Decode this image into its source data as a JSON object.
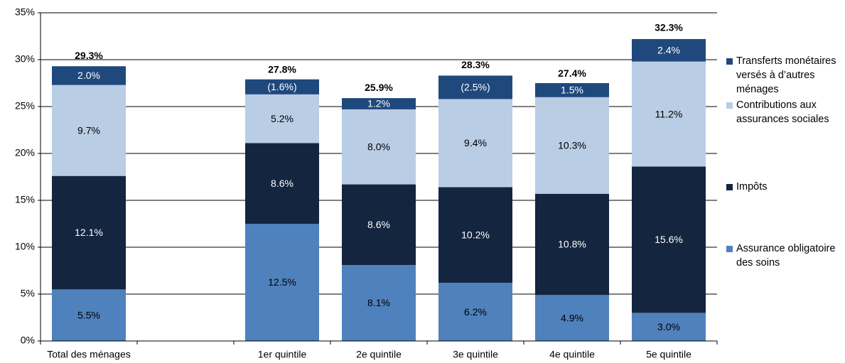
{
  "chart_data": {
    "type": "stacked_bar",
    "categories": [
      "Total des ménages",
      null,
      "1er quintile",
      "2e quintile",
      "3e quintile",
      "4e quintile",
      "5e quintile"
    ],
    "series": [
      {
        "name": "Assurance obligatoire des soins",
        "color": "#4f81bd",
        "values": [
          5.5,
          null,
          12.5,
          8.1,
          6.2,
          4.9,
          3.0
        ],
        "value_labels": [
          "5.5%",
          null,
          "12.5%",
          "8.1%",
          "6.2%",
          "4.9%",
          "3.0%"
        ]
      },
      {
        "name": "Impôts",
        "color": "#13253f",
        "values": [
          12.1,
          null,
          8.6,
          8.6,
          10.2,
          10.8,
          15.6
        ],
        "value_labels": [
          "12.1%",
          null,
          "8.6%",
          "8.6%",
          "10.2%",
          "10.8%",
          "15.6%"
        ]
      },
      {
        "name": "Contributions aux assurances sociales",
        "color": "#b9cde5",
        "values": [
          9.7,
          null,
          5.2,
          8.0,
          9.4,
          10.3,
          11.2
        ],
        "value_labels": [
          "9.7%",
          null,
          "5.2%",
          "8.0%",
          "9.4%",
          "10.3%",
          "11.2%"
        ]
      },
      {
        "name": "Transferts monétaires versés à d’autres ménages",
        "color": "#1f497d",
        "values": [
          2.0,
          null,
          1.6,
          1.2,
          2.5,
          1.5,
          2.4
        ],
        "value_labels": [
          "2.0%",
          null,
          "(1.6%)",
          "1.2%",
          "(2.5%)",
          "1.5%",
          "2.4%"
        ]
      }
    ],
    "totals": {
      "values": [
        29.3,
        null,
        27.8,
        25.9,
        28.3,
        27.4,
        32.3
      ],
      "value_labels": [
        "29.3%",
        null,
        "27.8%",
        "25.9%",
        "28.3%",
        "27.4%",
        "32.3%"
      ]
    },
    "ylim": [
      0,
      35
    ],
    "yticks": [
      {
        "value": 0,
        "label": "0%"
      },
      {
        "value": 5,
        "label": "5%"
      },
      {
        "value": 10,
        "label": "10%"
      },
      {
        "value": 15,
        "label": "15%"
      },
      {
        "value": 20,
        "label": "20%"
      },
      {
        "value": 25,
        "label": "25%"
      },
      {
        "value": 30,
        "label": "30%"
      },
      {
        "value": 35,
        "label": "35%"
      }
    ],
    "grid": true,
    "legend": "right"
  }
}
